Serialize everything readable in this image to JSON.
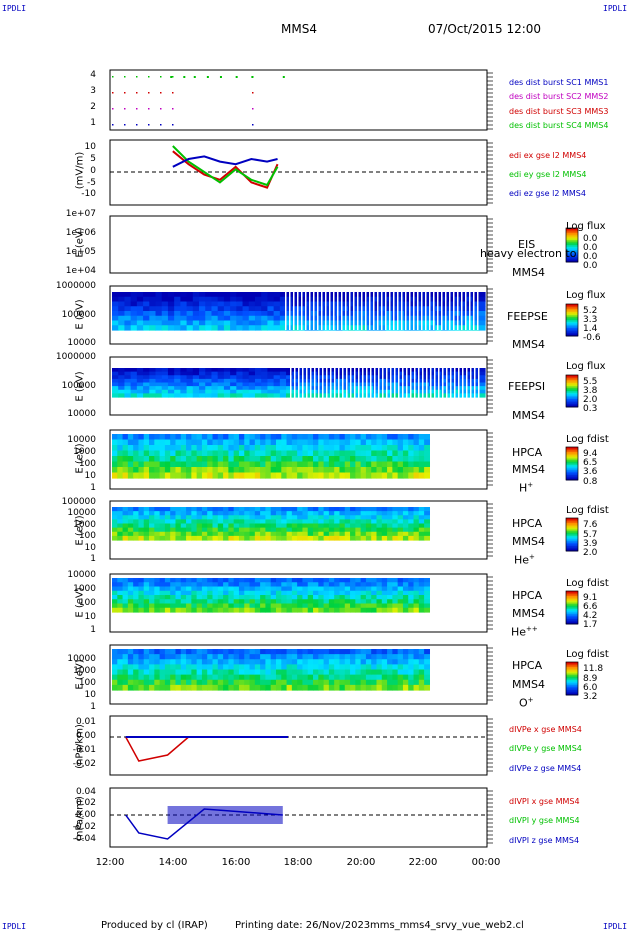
{
  "header": {
    "corner_tl": "IPDLI",
    "corner_tr": "IPDLI",
    "corner_bl": "IPDLI",
    "corner_br": "IPDLI",
    "spacecraft": "MMS4",
    "datetime": "07/Oct/2015 12:00"
  },
  "footer": {
    "produced": "Produced by cl (IRAP)",
    "printing": "Printing date: 26/Nov/2023",
    "file": "mms_mms4_srvy_vue_web2.cl"
  },
  "x_ticks": [
    "12:00",
    "14:00",
    "16:00",
    "18:00",
    "20:00",
    "22:00",
    "00:00"
  ],
  "colors": {
    "red": "#d00000",
    "green": "#00c000",
    "blue": "#0000c0",
    "magenta": "#c000c0"
  },
  "panels": {
    "burst": {
      "ticks": [
        "4",
        "3",
        "2",
        "1"
      ],
      "legend": [
        {
          "text": "des dist burst SC1 MMS1",
          "color": "#0000c0"
        },
        {
          "text": "des dist burst SC2 MMS2",
          "color": "#c000c0"
        },
        {
          "text": "des dist burst SC3 MMS3",
          "color": "#d00000"
        },
        {
          "text": "des dist burst SC4 MMS4",
          "color": "#00c000"
        }
      ]
    },
    "efield": {
      "ylabel": "(mV/m)",
      "ticks": [
        "10",
        "5",
        "0",
        "-5",
        "-10"
      ],
      "legend": [
        {
          "text": "edi ex gse l2 MMS4",
          "color": "#d00000"
        },
        {
          "text": "edi ey gse l2 MMS4",
          "color": "#00c000"
        },
        {
          "text": "edi ez gse l2 MMS4",
          "color": "#0000c0"
        }
      ]
    },
    "eis": {
      "ylabel": "E (eV)",
      "ticks": [
        "1e+07",
        "1e+06",
        "1e+05",
        "1e+04"
      ],
      "inst": "EIS",
      "sc": "MMS4",
      "overlay": "heavy electron to",
      "cb_label": "Log flux",
      "cb_values": [
        "0.0",
        "0.0",
        "0.0",
        "0.0"
      ]
    },
    "feepse": {
      "ylabel": "E (eV)",
      "ticks": [
        "1000000",
        "100000",
        "10000"
      ],
      "inst": "FEEPSE",
      "sc": "MMS4",
      "cb_label": "Log flux",
      "cb_values": [
        "5.2",
        "3.3",
        "1.4",
        "-0.6"
      ]
    },
    "feepsi": {
      "ylabel": "E (eV)",
      "ticks": [
        "1000000",
        "100000",
        "10000"
      ],
      "inst": "FEEPSI",
      "sc": "MMS4",
      "cb_label": "Log flux",
      "cb_values": [
        "5.5",
        "3.8",
        "2.0",
        "0.3"
      ]
    },
    "hpca_h": {
      "ylabel": "E (eV)",
      "ticks": [
        "10000",
        "1000",
        "100",
        "10",
        "1"
      ],
      "inst": "HPCA",
      "sc": "MMS4",
      "ion": "H",
      "ion_sup": "+",
      "cb_label": "Log fdist",
      "cb_values": [
        "9.4",
        "6.5",
        "3.6",
        "0.8"
      ]
    },
    "hpca_he": {
      "ylabel": "E (eV)",
      "ticks": [
        "100000",
        "10000",
        "1000",
        "100",
        "10",
        "1"
      ],
      "inst": "HPCA",
      "sc": "MMS4",
      "ion": "He",
      "ion_sup": "+",
      "cb_label": "Log fdist",
      "cb_values": [
        "7.6",
        "5.7",
        "3.9",
        "2.0"
      ]
    },
    "hpca_hepp": {
      "ylabel": "E (eV)",
      "ticks": [
        "10000",
        "1000",
        "100",
        "10",
        "1"
      ],
      "inst": "HPCA",
      "sc": "MMS4",
      "ion": "He",
      "ion_sup": "++",
      "cb_label": "Log fdist",
      "cb_values": [
        "9.1",
        "6.6",
        "4.2",
        "1.7"
      ]
    },
    "hpca_o": {
      "ylabel": "E (eV)",
      "ticks": [
        "10000",
        "1000",
        "100",
        "10",
        "1"
      ],
      "inst": "HPCA",
      "sc": "MMS4",
      "ion": "O",
      "ion_sup": "+",
      "cb_label": "Log fdist",
      "cb_values": [
        "11.8",
        "8.9",
        "6.0",
        "3.2"
      ]
    },
    "dpe": {
      "ylabel": "(nPa/km)",
      "ticks": [
        "0.01",
        "0.00",
        "-0.01",
        "-0.02"
      ],
      "legend": [
        {
          "text": "dIVPe x gse MMS4",
          "color": "#d00000"
        },
        {
          "text": "dIVPe y gse MMS4",
          "color": "#00c000"
        },
        {
          "text": "dIVPe z gse MMS4",
          "color": "#0000c0"
        }
      ]
    },
    "dpi": {
      "ylabel": "(nPa/km)",
      "ticks": [
        "0.04",
        "0.02",
        "0.00",
        "-0.02",
        "-0.04"
      ],
      "legend": [
        {
          "text": "dIVPI x gse MMS4",
          "color": "#d00000"
        },
        {
          "text": "dIVPI y gse MMS4",
          "color": "#00c000"
        },
        {
          "text": "dIVPI z gse MMS4",
          "color": "#0000c0"
        }
      ]
    }
  },
  "chart_data": {
    "type": "heatmap",
    "title": "MMS4 07/Oct/2015 12:00",
    "x_range": [
      "12:00",
      "00:00"
    ],
    "x_ticks": [
      "12:00",
      "14:00",
      "16:00",
      "18:00",
      "20:00",
      "22:00",
      "00:00"
    ],
    "series": [
      {
        "name": "des dist burst SC4 MMS4",
        "type": "scatter",
        "x": [
          "13:55",
          "14:20",
          "14:40",
          "15:05",
          "15:30",
          "16:00",
          "16:30",
          "17:30"
        ],
        "values": [
          4,
          4,
          4,
          4,
          4,
          4,
          4,
          4
        ]
      },
      {
        "name": "edi ex gse l2 MMS4",
        "type": "line",
        "x": [
          "14:00",
          "14:30",
          "15:00",
          "15:30",
          "16:00",
          "16:30",
          "17:00",
          "17:20"
        ],
        "values": [
          8,
          3,
          -1,
          -3,
          2,
          -4,
          -6,
          3
        ]
      },
      {
        "name": "edi ey gse l2 MMS4",
        "type": "line",
        "x": [
          "14:00",
          "14:30",
          "15:00",
          "15:30",
          "16:00",
          "16:30",
          "17:00",
          "17:20"
        ],
        "values": [
          10,
          4,
          0,
          -4,
          1,
          -3,
          -5,
          2
        ]
      },
      {
        "name": "edi ez gse l2 MMS4",
        "type": "line",
        "x": [
          "14:00",
          "14:30",
          "15:00",
          "15:30",
          "16:00",
          "16:30",
          "17:00",
          "17:20"
        ],
        "values": [
          2,
          5,
          6,
          4,
          3,
          5,
          4,
          5
        ]
      },
      {
        "name": "dIVPe x gse MMS4",
        "type": "line",
        "x": [
          "12:30",
          "12:55",
          "13:50",
          "14:30",
          "17:40"
        ],
        "values": [
          0.0,
          -0.02,
          -0.015,
          0.0,
          0.0
        ]
      },
      {
        "name": "dIVPI z gse MMS4",
        "type": "line",
        "x": [
          "12:30",
          "12:55",
          "13:50",
          "15:00",
          "17:30"
        ],
        "values": [
          0.0,
          -0.03,
          -0.04,
          0.01,
          0.0
        ]
      }
    ],
    "spectrograms": [
      {
        "name": "FEEPSE",
        "ylim": [
          10000,
          1000000
        ],
        "log": true,
        "cb": "Log flux",
        "cb_range": [
          -0.6,
          5.2
        ],
        "x_end": "00:00"
      },
      {
        "name": "FEEPSI",
        "ylim": [
          10000,
          1000000
        ],
        "log": true,
        "cb": "Log flux",
        "cb_range": [
          0.3,
          5.5
        ],
        "x_end": "00:00"
      },
      {
        "name": "HPCA H+",
        "ylim": [
          1,
          10000
        ],
        "log": true,
        "cb": "Log fdist",
        "cb_range": [
          0.8,
          9.4
        ],
        "x_end": "22:10"
      },
      {
        "name": "HPCA He+",
        "ylim": [
          1,
          100000
        ],
        "log": true,
        "cb": "Log fdist",
        "cb_range": [
          2.0,
          7.6
        ],
        "x_end": "22:10"
      },
      {
        "name": "HPCA He++",
        "ylim": [
          1,
          10000
        ],
        "log": true,
        "cb": "Log fdist",
        "cb_range": [
          1.7,
          9.1
        ],
        "x_end": "22:10"
      },
      {
        "name": "HPCA O+",
        "ylim": [
          1,
          10000
        ],
        "log": true,
        "cb": "Log fdist",
        "cb_range": [
          3.2,
          11.8
        ],
        "x_end": "22:10"
      }
    ]
  }
}
